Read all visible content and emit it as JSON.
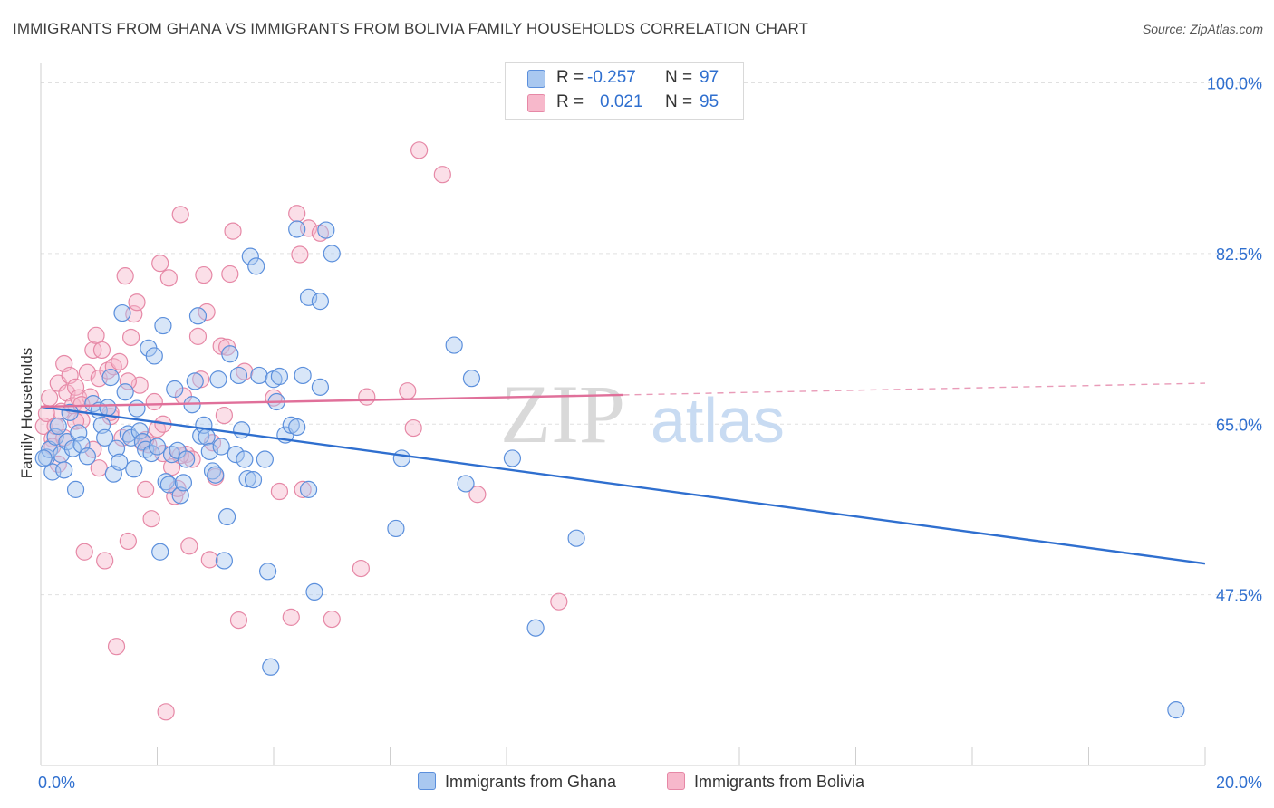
{
  "title": "IMMIGRANTS FROM GHANA VS IMMIGRANTS FROM BOLIVIA FAMILY HOUSEHOLDS CORRELATION CHART",
  "source": "Source: ZipAtlas.com",
  "watermark": {
    "zip": "ZIP",
    "atlas": "atlas"
  },
  "legend": {
    "ghana": {
      "r_label": "R =",
      "r_value": "-0.257",
      "n_label": "N =",
      "n_value": "97"
    },
    "bolivia": {
      "r_label": "R =",
      "r_value": "0.021",
      "n_label": "N =",
      "n_value": "95"
    }
  },
  "colors": {
    "ghana_fill": "#a9c8f0",
    "ghana_stroke": "#5b8fdc",
    "ghana_line": "#2f6fcf",
    "bolivia_fill": "#f7b8cb",
    "bolivia_stroke": "#e688a6",
    "bolivia_line": "#e0709a",
    "axis_text": "#2f6fcf",
    "grid": "#e0e0e0"
  },
  "chart_data": {
    "type": "scatter",
    "title": "IMMIGRANTS FROM GHANA VS IMMIGRANTS FROM BOLIVIA FAMILY HOUSEHOLDS CORRELATION CHART",
    "xlabel": "",
    "ylabel": "Family Households",
    "xlim": [
      0,
      20
    ],
    "ylim": [
      30,
      102
    ],
    "x_tick_labels": [
      "0.0%",
      "20.0%"
    ],
    "y_ticks": [
      47.5,
      65.0,
      82.5,
      100.0
    ],
    "y_tick_labels": [
      "47.5%",
      "65.0%",
      "82.5%",
      "100.0%"
    ],
    "grid": true,
    "series": [
      {
        "name": "Immigrants from Ghana",
        "trend": {
          "x": [
            0,
            20
          ],
          "y": [
            66.8,
            50.7
          ],
          "dashed_from": null
        },
        "points": [
          [
            0.1,
            61.6
          ],
          [
            0.15,
            62.4
          ],
          [
            0.2,
            60.1
          ],
          [
            0.25,
            63.7
          ],
          [
            0.3,
            64.8
          ],
          [
            0.35,
            61.9
          ],
          [
            0.4,
            60.3
          ],
          [
            0.45,
            63.2
          ],
          [
            0.5,
            66.2
          ],
          [
            0.55,
            62.5
          ],
          [
            0.6,
            58.3
          ],
          [
            0.65,
            64.1
          ],
          [
            0.7,
            62.9
          ],
          [
            0.8,
            61.7
          ],
          [
            0.9,
            67.1
          ],
          [
            1.0,
            66.4
          ],
          [
            1.05,
            64.9
          ],
          [
            1.1,
            63.6
          ],
          [
            1.15,
            66.7
          ],
          [
            1.2,
            69.8
          ],
          [
            1.25,
            59.9
          ],
          [
            1.3,
            62.5
          ],
          [
            1.35,
            61.1
          ],
          [
            1.4,
            76.4
          ],
          [
            1.45,
            68.3
          ],
          [
            1.5,
            64.0
          ],
          [
            1.55,
            63.6
          ],
          [
            1.6,
            60.4
          ],
          [
            1.65,
            66.6
          ],
          [
            1.7,
            64.3
          ],
          [
            1.75,
            63.2
          ],
          [
            1.8,
            62.4
          ],
          [
            1.85,
            72.8
          ],
          [
            1.9,
            62.0
          ],
          [
            1.95,
            72.0
          ],
          [
            2.0,
            62.7
          ],
          [
            2.05,
            51.9
          ],
          [
            2.1,
            75.1
          ],
          [
            2.15,
            59.1
          ],
          [
            2.2,
            58.8
          ],
          [
            2.25,
            61.9
          ],
          [
            2.3,
            68.6
          ],
          [
            2.35,
            62.3
          ],
          [
            2.4,
            57.7
          ],
          [
            2.45,
            59.0
          ],
          [
            2.5,
            61.4
          ],
          [
            2.6,
            67.0
          ],
          [
            2.65,
            69.4
          ],
          [
            2.7,
            76.1
          ],
          [
            2.75,
            63.8
          ],
          [
            2.8,
            64.9
          ],
          [
            2.85,
            63.7
          ],
          [
            2.9,
            62.2
          ],
          [
            2.95,
            60.2
          ],
          [
            3.0,
            59.8
          ],
          [
            3.05,
            69.6
          ],
          [
            3.1,
            62.7
          ],
          [
            3.15,
            51.0
          ],
          [
            3.2,
            55.5
          ],
          [
            3.25,
            72.2
          ],
          [
            3.35,
            61.9
          ],
          [
            3.4,
            70.0
          ],
          [
            3.45,
            64.4
          ],
          [
            3.5,
            61.4
          ],
          [
            3.55,
            59.4
          ],
          [
            3.6,
            82.2
          ],
          [
            3.65,
            59.3
          ],
          [
            3.7,
            81.2
          ],
          [
            3.75,
            70.0
          ],
          [
            3.85,
            61.4
          ],
          [
            3.9,
            49.9
          ],
          [
            3.95,
            40.1
          ],
          [
            4.0,
            69.6
          ],
          [
            4.05,
            67.3
          ],
          [
            4.1,
            69.9
          ],
          [
            4.2,
            63.9
          ],
          [
            4.3,
            64.9
          ],
          [
            4.4,
            64.7
          ],
          [
            4.5,
            70.0
          ],
          [
            4.6,
            58.3
          ],
          [
            4.7,
            47.8
          ],
          [
            4.8,
            68.8
          ],
          [
            4.9,
            84.9
          ],
          [
            5.0,
            82.5
          ],
          [
            4.4,
            85.0
          ],
          [
            4.6,
            78.0
          ],
          [
            4.8,
            77.6
          ],
          [
            6.1,
            54.3
          ],
          [
            6.2,
            61.5
          ],
          [
            7.1,
            73.1
          ],
          [
            7.3,
            58.9
          ],
          [
            7.4,
            69.7
          ],
          [
            8.1,
            61.5
          ],
          [
            8.5,
            44.1
          ],
          [
            9.2,
            53.3
          ],
          [
            19.5,
            35.7
          ],
          [
            0.05,
            61.5
          ]
        ]
      },
      {
        "name": "Immigrants from Bolivia",
        "trend": {
          "x": [
            0,
            20
          ],
          "y": [
            66.8,
            69.2
          ],
          "dashed_from": 10.0
        },
        "points": [
          [
            0.05,
            64.8
          ],
          [
            0.1,
            66.1
          ],
          [
            0.15,
            67.7
          ],
          [
            0.2,
            63.5
          ],
          [
            0.25,
            64.8
          ],
          [
            0.3,
            69.2
          ],
          [
            0.35,
            66.3
          ],
          [
            0.4,
            71.2
          ],
          [
            0.45,
            68.2
          ],
          [
            0.5,
            70.0
          ],
          [
            0.55,
            66.9
          ],
          [
            0.6,
            68.8
          ],
          [
            0.65,
            67.7
          ],
          [
            0.7,
            65.4
          ],
          [
            0.75,
            51.9
          ],
          [
            0.8,
            70.3
          ],
          [
            0.85,
            67.8
          ],
          [
            0.9,
            72.6
          ],
          [
            0.95,
            74.1
          ],
          [
            1.0,
            69.7
          ],
          [
            1.05,
            72.6
          ],
          [
            1.1,
            51.0
          ],
          [
            1.15,
            70.5
          ],
          [
            1.2,
            65.8
          ],
          [
            1.25,
            70.9
          ],
          [
            1.3,
            42.2
          ],
          [
            1.35,
            71.4
          ],
          [
            1.4,
            63.6
          ],
          [
            1.45,
            80.2
          ],
          [
            1.5,
            53.0
          ],
          [
            1.55,
            73.9
          ],
          [
            1.6,
            76.3
          ],
          [
            1.65,
            77.5
          ],
          [
            1.7,
            69.0
          ],
          [
            1.75,
            63.1
          ],
          [
            1.8,
            58.3
          ],
          [
            1.85,
            62.9
          ],
          [
            1.9,
            55.3
          ],
          [
            1.95,
            67.3
          ],
          [
            2.0,
            64.5
          ],
          [
            2.05,
            81.5
          ],
          [
            2.1,
            62.0
          ],
          [
            2.15,
            35.5
          ],
          [
            2.2,
            80.0
          ],
          [
            2.25,
            60.6
          ],
          [
            2.3,
            57.6
          ],
          [
            2.35,
            58.4
          ],
          [
            2.4,
            86.5
          ],
          [
            2.45,
            67.9
          ],
          [
            2.5,
            61.9
          ],
          [
            2.55,
            52.5
          ],
          [
            2.6,
            61.4
          ],
          [
            2.7,
            74.0
          ],
          [
            2.75,
            69.6
          ],
          [
            2.8,
            80.3
          ],
          [
            2.85,
            76.5
          ],
          [
            2.9,
            51.1
          ],
          [
            2.95,
            63.1
          ],
          [
            3.0,
            59.6
          ],
          [
            3.1,
            73.0
          ],
          [
            3.15,
            65.9
          ],
          [
            3.2,
            72.9
          ],
          [
            3.25,
            80.4
          ],
          [
            3.3,
            84.8
          ],
          [
            3.4,
            44.9
          ],
          [
            3.5,
            70.4
          ],
          [
            4.0,
            67.7
          ],
          [
            4.1,
            58.1
          ],
          [
            4.3,
            45.2
          ],
          [
            4.4,
            86.6
          ],
          [
            4.45,
            82.4
          ],
          [
            4.5,
            58.3
          ],
          [
            4.6,
            85.1
          ],
          [
            4.8,
            84.6
          ],
          [
            5.0,
            45.0
          ],
          [
            5.5,
            50.2
          ],
          [
            5.6,
            67.8
          ],
          [
            6.3,
            68.4
          ],
          [
            6.4,
            64.6
          ],
          [
            6.5,
            93.1
          ],
          [
            6.9,
            90.6
          ],
          [
            7.5,
            57.8
          ],
          [
            8.9,
            46.8
          ],
          [
            0.3,
            60.9
          ],
          [
            0.6,
            65.3
          ],
          [
            0.9,
            62.4
          ],
          [
            1.2,
            66.2
          ],
          [
            1.5,
            69.4
          ],
          [
            1.8,
            63.4
          ],
          [
            2.1,
            65.0
          ],
          [
            2.4,
            61.8
          ],
          [
            0.2,
            62.7
          ],
          [
            0.4,
            63.6
          ],
          [
            0.7,
            67.0
          ],
          [
            1.0,
            60.5
          ]
        ]
      }
    ]
  }
}
